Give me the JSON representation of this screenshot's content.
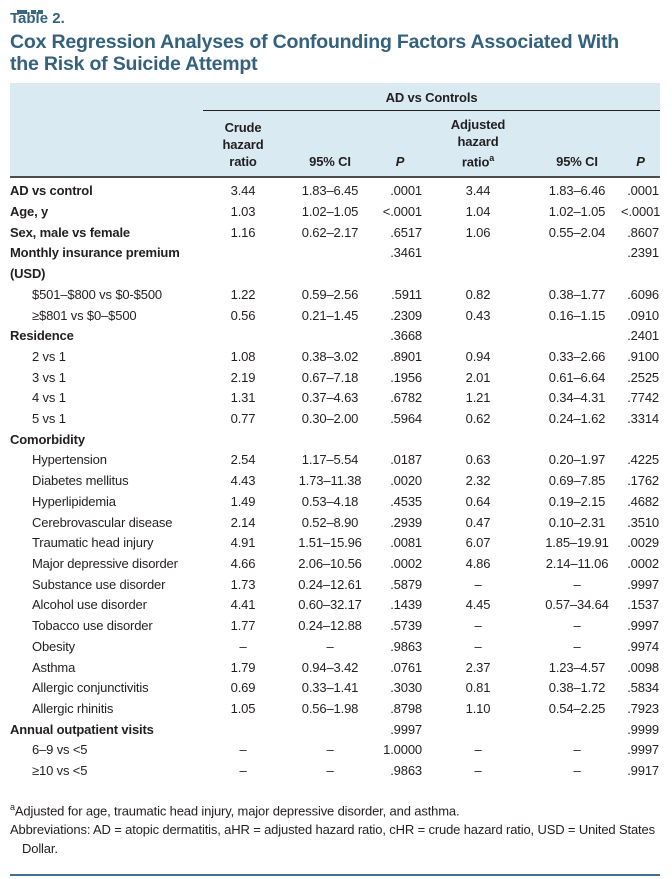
{
  "page": {
    "eyebrow": "Table 2.",
    "title": "Cox Regression Analyses of Confounding Factors Associated With the Risk of Suicide Attempt",
    "accent_color": "#33617e",
    "header_bg": "#d9eaf3",
    "rule_color": "#44708f"
  },
  "table": {
    "spanner": "AD vs Controls",
    "columns": [
      {
        "label": "Crude\nhazard\nratio",
        "sup": "",
        "italic": false
      },
      {
        "label": "95% CI",
        "sup": "",
        "italic": false
      },
      {
        "label": "P",
        "sup": "",
        "italic": true
      },
      {
        "label": "Adjusted\nhazard\nratio",
        "sup": "a",
        "italic": false
      },
      {
        "label": "95% CI",
        "sup": "",
        "italic": false
      },
      {
        "label": "P",
        "sup": "",
        "italic": true
      }
    ],
    "rows": [
      {
        "label": "AD vs control",
        "bold": true,
        "indent": false,
        "cells": [
          "3.44",
          "1.83–6.45",
          ".0001",
          "3.44",
          "1.83–6.46",
          ".0001"
        ]
      },
      {
        "label": "Age, y",
        "bold": true,
        "indent": false,
        "cells": [
          "1.03",
          "1.02–1.05",
          "<.0001",
          "1.04",
          "1.02–1.05",
          "<.0001"
        ]
      },
      {
        "label": "Sex, male vs female",
        "bold": true,
        "indent": false,
        "cells": [
          "1.16",
          "0.62–2.17",
          ".6517",
          "1.06",
          "0.55–2.04",
          ".8607"
        ]
      },
      {
        "label": "Monthly insurance premium (USD)",
        "bold": true,
        "indent": false,
        "cells": [
          "",
          "",
          ".3461",
          "",
          "",
          ".2391"
        ]
      },
      {
        "label": "$501–$800 vs $0-$500",
        "bold": false,
        "indent": true,
        "cells": [
          "1.22",
          "0.59–2.56",
          ".5911",
          "0.82",
          "0.38–1.77",
          ".6096"
        ]
      },
      {
        "label": "≥$801 vs $0–$500",
        "bold": false,
        "indent": true,
        "cells": [
          "0.56",
          "0.21–1.45",
          ".2309",
          "0.43",
          "0.16–1.15",
          ".0910"
        ]
      },
      {
        "label": "Residence",
        "bold": true,
        "indent": false,
        "cells": [
          "",
          "",
          ".3668",
          "",
          "",
          ".2401"
        ]
      },
      {
        "label": "2 vs 1",
        "bold": false,
        "indent": true,
        "cells": [
          "1.08",
          "0.38–3.02",
          ".8901",
          "0.94",
          "0.33–2.66",
          ".9100"
        ]
      },
      {
        "label": "3 vs 1",
        "bold": false,
        "indent": true,
        "cells": [
          "2.19",
          "0.67–7.18",
          ".1956",
          "2.01",
          "0.61–6.64",
          ".2525"
        ]
      },
      {
        "label": "4 vs 1",
        "bold": false,
        "indent": true,
        "cells": [
          "1.31",
          "0.37–4.63",
          ".6782",
          "1.21",
          "0.34–4.31",
          ".7742"
        ]
      },
      {
        "label": "5 vs 1",
        "bold": false,
        "indent": true,
        "cells": [
          "0.77",
          "0.30–2.00",
          ".5964",
          "0.62",
          "0.24–1.62",
          ".3314"
        ]
      },
      {
        "label": "Comorbidity",
        "bold": true,
        "indent": false,
        "cells": [
          "",
          "",
          "",
          "",
          "",
          ""
        ]
      },
      {
        "label": "Hypertension",
        "bold": false,
        "indent": true,
        "cells": [
          "2.54",
          "1.17–5.54",
          ".0187",
          "0.63",
          "0.20–1.97",
          ".4225"
        ]
      },
      {
        "label": "Diabetes mellitus",
        "bold": false,
        "indent": true,
        "cells": [
          "4.43",
          "1.73–11.38",
          ".0020",
          "2.32",
          "0.69–7.85",
          ".1762"
        ]
      },
      {
        "label": "Hyperlipidemia",
        "bold": false,
        "indent": true,
        "cells": [
          "1.49",
          "0.53–4.18",
          ".4535",
          "0.64",
          "0.19–2.15",
          ".4682"
        ]
      },
      {
        "label": "Cerebrovascular disease",
        "bold": false,
        "indent": true,
        "cells": [
          "2.14",
          "0.52–8.90",
          ".2939",
          "0.47",
          "0.10–2.31",
          ".3510"
        ]
      },
      {
        "label": "Traumatic head injury",
        "bold": false,
        "indent": true,
        "cells": [
          "4.91",
          "1.51–15.96",
          ".0081",
          "6.07",
          "1.85–19.91",
          ".0029"
        ]
      },
      {
        "label": "Major depressive disorder",
        "bold": false,
        "indent": true,
        "cells": [
          "4.66",
          "2.06–10.56",
          ".0002",
          "4.86",
          "2.14–11.06",
          ".0002"
        ]
      },
      {
        "label": "Substance use disorder",
        "bold": false,
        "indent": true,
        "cells": [
          "1.73",
          "0.24–12.61",
          ".5879",
          "–",
          "–",
          ".9997"
        ]
      },
      {
        "label": "Alcohol use disorder",
        "bold": false,
        "indent": true,
        "cells": [
          "4.41",
          "0.60–32.17",
          ".1439",
          "4.45",
          "0.57–34.64",
          ".1537"
        ]
      },
      {
        "label": "Tobacco use disorder",
        "bold": false,
        "indent": true,
        "cells": [
          "1.77",
          "0.24–12.88",
          ".5739",
          "–",
          "–",
          ".9997"
        ]
      },
      {
        "label": "Obesity",
        "bold": false,
        "indent": true,
        "cells": [
          "–",
          "–",
          ".9863",
          "–",
          "–",
          ".9974"
        ]
      },
      {
        "label": "Asthma",
        "bold": false,
        "indent": true,
        "cells": [
          "1.79",
          "0.94–3.42",
          ".0761",
          "2.37",
          "1.23–4.57",
          ".0098"
        ]
      },
      {
        "label": "Allergic conjunctivitis",
        "bold": false,
        "indent": true,
        "cells": [
          "0.69",
          "0.33–1.41",
          ".3030",
          "0.81",
          "0.38–1.72",
          ".5834"
        ]
      },
      {
        "label": "Allergic rhinitis",
        "bold": false,
        "indent": true,
        "cells": [
          "1.05",
          "0.56–1.98",
          ".8798",
          "1.10",
          "0.54–2.25",
          ".7923"
        ]
      },
      {
        "label": "Annual outpatient visits",
        "bold": true,
        "indent": false,
        "cells": [
          "",
          "",
          ".9997",
          "",
          "",
          ".9999"
        ]
      },
      {
        "label": "6–9 vs <5",
        "bold": false,
        "indent": true,
        "cells": [
          "–",
          "–",
          "1.0000",
          "–",
          "–",
          ".9997"
        ]
      },
      {
        "label": "≥10 vs <5",
        "bold": false,
        "indent": true,
        "cells": [
          "–",
          "–",
          ".9863",
          "–",
          "–",
          ".9917"
        ]
      }
    ]
  },
  "footnotes": {
    "adjusted_sup": "a",
    "adjusted": "Adjusted for age, traumatic head injury, major depressive disorder, and asthma.",
    "abbreviations": "Abbreviations: AD = atopic dermatitis, aHR = adjusted hazard ratio, cHR = crude hazard ratio, USD = United States Dollar."
  }
}
